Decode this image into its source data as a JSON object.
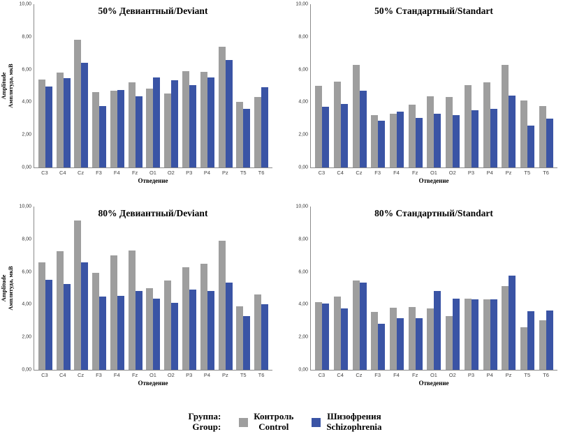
{
  "axes": {
    "y_ticks": [
      "0,00",
      "2,00",
      "4,00",
      "6,00",
      "8,00",
      "10,00"
    ],
    "y_axis_title_en": "Amplitude",
    "y_axis_title_ru": "Амплитуда, мкВ",
    "x_axis_title": "Отведение"
  },
  "legend": {
    "group_label_ru": "Группа:",
    "group_label_en": "Group:",
    "series": [
      {
        "label_ru": "Контроль",
        "label_en": "Control",
        "color": "#9e9e9e"
      },
      {
        "label_ru": "Шизофрения",
        "label_en": "Schizophrenia",
        "color": "#3a54a5"
      }
    ]
  },
  "chart_data": [
    {
      "type": "bar",
      "title": "50% Девиантный/Deviant",
      "categories": [
        "C3",
        "C4",
        "Cz",
        "F3",
        "F4",
        "Fz",
        "O1",
        "O2",
        "P3",
        "P4",
        "Pz",
        "T5",
        "T6"
      ],
      "series": [
        {
          "name": "Контроль/Control",
          "values": [
            5.4,
            5.8,
            7.8,
            4.6,
            4.7,
            5.2,
            4.85,
            4.55,
            5.9,
            5.85,
            7.4,
            4.0,
            4.3
          ]
        },
        {
          "name": "Шизофрения/Schizophrenia",
          "values": [
            4.95,
            5.45,
            6.4,
            3.75,
            4.75,
            4.35,
            5.5,
            5.35,
            5.05,
            5.5,
            6.6,
            3.6,
            4.9
          ]
        }
      ],
      "ylim": [
        0,
        10
      ],
      "xlabel": "Отведение",
      "ylabel": "Amplitude Амплитуда, мкВ",
      "grid": false,
      "legend_position": "bottom"
    },
    {
      "type": "bar",
      "title": "50% Стандартный/Standart",
      "categories": [
        "C3",
        "C4",
        "Cz",
        "F3",
        "F4",
        "Fz",
        "O1",
        "O2",
        "P3",
        "P4",
        "Pz",
        "T5",
        "T6"
      ],
      "series": [
        {
          "name": "Контроль/Control",
          "values": [
            5.0,
            5.25,
            6.3,
            3.2,
            3.3,
            3.85,
            4.35,
            4.3,
            5.05,
            5.2,
            6.3,
            4.1,
            3.75
          ]
        },
        {
          "name": "Шизофрения/Schizophrenia",
          "values": [
            3.7,
            3.9,
            4.7,
            2.85,
            3.4,
            3.05,
            3.3,
            3.2,
            3.5,
            3.6,
            4.4,
            2.55,
            3.0
          ]
        }
      ],
      "ylim": [
        0,
        10
      ],
      "xlabel": "Отведение",
      "ylabel": "",
      "grid": false,
      "legend_position": "bottom"
    },
    {
      "type": "bar",
      "title": "80% Девиантный/Deviant",
      "categories": [
        "C3",
        "C4",
        "Cz",
        "F3",
        "F4",
        "Fz",
        "O1",
        "O2",
        "P3",
        "P4",
        "Pz",
        "T5",
        "T6"
      ],
      "series": [
        {
          "name": "Контроль/Control",
          "values": [
            6.6,
            7.25,
            9.15,
            5.95,
            7.0,
            7.3,
            5.0,
            5.45,
            6.3,
            6.5,
            7.9,
            3.9,
            4.6
          ]
        },
        {
          "name": "Шизофрения/Schizophrenia",
          "values": [
            5.5,
            5.25,
            6.6,
            4.5,
            4.55,
            4.85,
            4.35,
            4.1,
            4.9,
            4.85,
            5.35,
            3.3,
            4.0
          ]
        }
      ],
      "ylim": [
        0,
        10
      ],
      "xlabel": "Отведение",
      "ylabel": "Amplitude Амплитуда, мкВ",
      "grid": false,
      "legend_position": "bottom"
    },
    {
      "type": "bar",
      "title": "80% Стандартный/Standart",
      "categories": [
        "C3",
        "C4",
        "Cz",
        "F3",
        "F4",
        "Fz",
        "O1",
        "O2",
        "P3",
        "P4",
        "Pz",
        "T5",
        "T6"
      ],
      "series": [
        {
          "name": "Контроль/Control",
          "values": [
            4.15,
            4.5,
            5.45,
            3.55,
            3.8,
            3.85,
            3.75,
            3.3,
            4.35,
            4.3,
            5.15,
            2.6,
            3.05
          ]
        },
        {
          "name": "Шизофрения/Schizophrenia",
          "values": [
            4.05,
            3.75,
            5.35,
            2.8,
            3.15,
            3.15,
            4.85,
            4.35,
            4.3,
            4.3,
            5.75,
            3.6,
            3.65
          ]
        }
      ],
      "ylim": [
        0,
        10
      ],
      "xlabel": "Отведение",
      "ylabel": "",
      "grid": false,
      "legend_position": "bottom"
    }
  ]
}
